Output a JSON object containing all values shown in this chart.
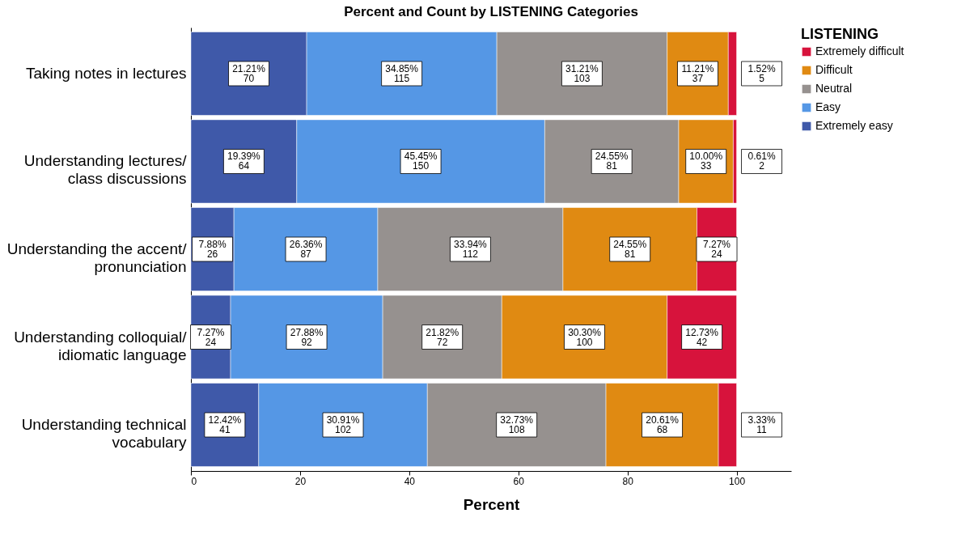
{
  "chart_data": {
    "type": "bar",
    "orientation": "horizontal",
    "stacked": true,
    "title": "Percent and Count by LISTENING Categories",
    "xlabel": "Percent",
    "legend_title": "LISTENING",
    "legend": "top right",
    "grid": false,
    "categories": [
      "Taking notes in lectures",
      "Understanding lectures/\nclass discussions",
      "Understanding the accent/\npronunciation",
      "Understanding colloquial/\nidiomatic language",
      "Understanding technical\nvocabulary"
    ],
    "xlim": [
      0,
      110
    ],
    "xticks": [
      0,
      20,
      40,
      60,
      80,
      100
    ],
    "series": [
      {
        "name": "Extremely easy",
        "color": "#3f59a9",
        "values": [
          21.21,
          19.39,
          7.88,
          7.27,
          12.42
        ],
        "value_labels": [
          "21.21%\n70",
          "19.39%\n64",
          "7.88%\n26",
          "7.27%\n24",
          "12.42%\n41"
        ]
      },
      {
        "name": "Easy",
        "color": "#5597e5",
        "values": [
          34.85,
          45.45,
          26.36,
          27.88,
          30.91
        ],
        "value_labels": [
          "34.85%\n115",
          "45.45%\n150",
          "26.36%\n87",
          "27.88%\n92",
          "30.91%\n102"
        ]
      },
      {
        "name": "Neutral",
        "color": "#96918f",
        "values": [
          31.21,
          24.55,
          33.94,
          21.82,
          32.73
        ],
        "value_labels": [
          "31.21%\n103",
          "24.55%\n81",
          "33.94%\n112",
          "21.82%\n72",
          "32.73%\n108"
        ]
      },
      {
        "name": "Difficult",
        "color": "#e08a12",
        "values": [
          11.21,
          10.0,
          24.55,
          30.3,
          20.61
        ],
        "value_labels": [
          "11.21%\n37",
          "10.00%\n33",
          "24.55%\n81",
          "30.30%\n100",
          "20.61%\n68"
        ]
      },
      {
        "name": "Extremely difficult",
        "color": "#d7133c",
        "values": [
          1.52,
          0.61,
          7.27,
          12.73,
          3.33
        ],
        "value_labels": [
          "1.52%\n5",
          "0.61%\n2",
          "7.27%\n24",
          "12.73%\n42",
          "3.33%\n11"
        ]
      }
    ]
  }
}
